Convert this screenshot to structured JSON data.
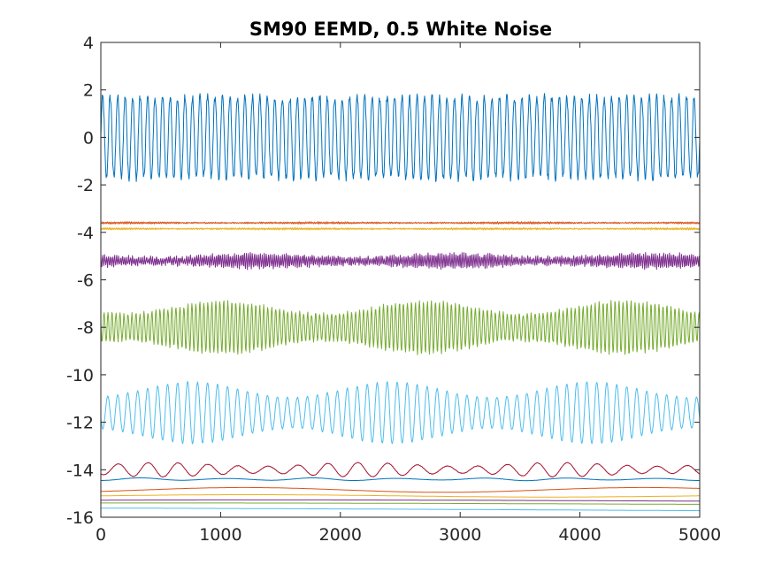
{
  "chart_data": {
    "type": "line",
    "title": "SM90 EEMD, 0.5 White Noise",
    "xlabel": "",
    "ylabel": "",
    "xlim": [
      0,
      5000
    ],
    "ylim": [
      -16,
      4
    ],
    "grid": false,
    "legend": "none",
    "xticks": [
      0,
      1000,
      2000,
      3000,
      4000,
      5000
    ],
    "yticks": [
      4,
      2,
      0,
      -2,
      -4,
      -6,
      -8,
      -10,
      -12,
      -14,
      -16
    ],
    "n_samples": 5000,
    "series": [
      {
        "color": "#0072BD",
        "offset": 0.0,
        "amplitude": 2.6,
        "cycles": 80,
        "noise": 0.6,
        "description_shape": "periodic pulse waveform"
      },
      {
        "color": "#D95319",
        "offset": -3.6,
        "amplitude": 0.04,
        "cycles": 900,
        "noise": 0.03
      },
      {
        "color": "#EDB120",
        "offset": -3.85,
        "amplitude": 0.04,
        "cycles": 900,
        "noise": 0.03
      },
      {
        "color": "#7E2F8E",
        "offset": -5.2,
        "amplitude": 0.3,
        "cycles": 300,
        "noise": 0.15
      },
      {
        "color": "#77AC30",
        "offset": -8.0,
        "amplitude": 1.1,
        "cycles": 150,
        "noise": 0.15
      },
      {
        "color": "#4DBEEE",
        "offset": -11.6,
        "amplitude": 1.3,
        "cycles": 60,
        "noise": 0.05
      },
      {
        "color": "#A2142F",
        "offset": -14.0,
        "amplitude": 0.3,
        "cycles": 20,
        "noise": 0.02
      },
      {
        "color": "#0072BD",
        "offset": -14.4,
        "amplitude": 0.06,
        "cycles": 7,
        "noise": 0.0
      },
      {
        "color": "#D95319",
        "offset": -14.85,
        "amplitude": 0.1,
        "cycles": 1.5,
        "noise": 0.0
      },
      {
        "color": "#EDB120",
        "offset": -15.1,
        "amplitude": 0.05,
        "cycles": 1,
        "noise": 0.0
      },
      {
        "color": "#7E2F8E",
        "offset": -15.3,
        "amplitude": 0.03,
        "cycles": 0.5,
        "noise": 0.0
      },
      {
        "color": "#77AC30",
        "offset": -15.45,
        "amplitude": 0.05,
        "cycles": 0.3,
        "noise": 0.0
      },
      {
        "color": "#4DBEEE",
        "offset": -15.7,
        "amplitude": 0.1,
        "cycles": 0.2,
        "noise": 0.0
      }
    ]
  }
}
